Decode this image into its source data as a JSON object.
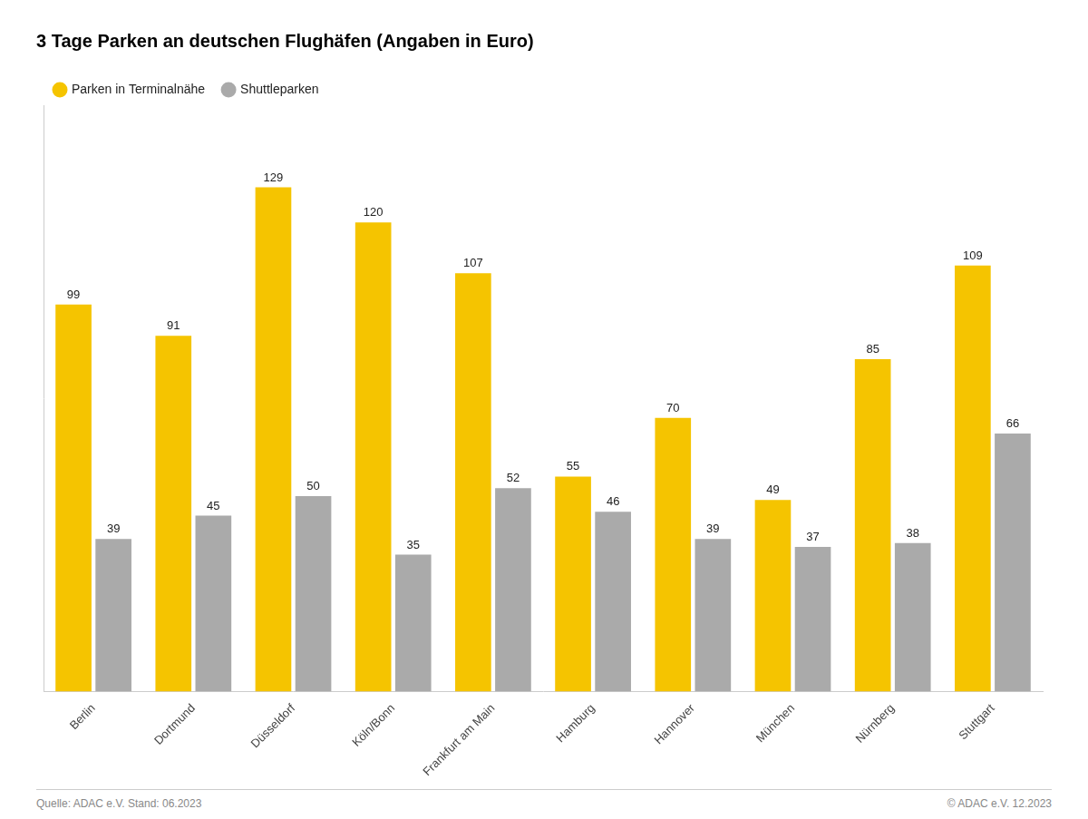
{
  "chart_data": {
    "type": "bar",
    "title": "3 Tage Parken an deutschen Flughäfen (Angaben in Euro)",
    "categories": [
      "Berlin",
      "Dortmund",
      "Düsseldorf",
      "Köln/Bonn",
      "Frankfurt am Main",
      "Hamburg",
      "Hannover",
      "München",
      "Nürnberg",
      "Stuttgart"
    ],
    "series": [
      {
        "name": "Parken in Terminalnähe",
        "color": "#F5C400",
        "values": [
          99,
          91,
          129,
          120,
          107,
          55,
          70,
          49,
          85,
          109
        ]
      },
      {
        "name": "Shuttleparken",
        "color": "#AAAAAA",
        "values": [
          39,
          45,
          50,
          35,
          52,
          46,
          39,
          37,
          38,
          66
        ]
      }
    ],
    "ylim": [
      0,
      150
    ],
    "grid": false,
    "legend": "top",
    "data_labels": true,
    "tick_labels": "x",
    "annotations": [
      "Quelle: ADAC e.V. Stand: 06.2023",
      "© ADAC e.V. 12.2023"
    ]
  }
}
